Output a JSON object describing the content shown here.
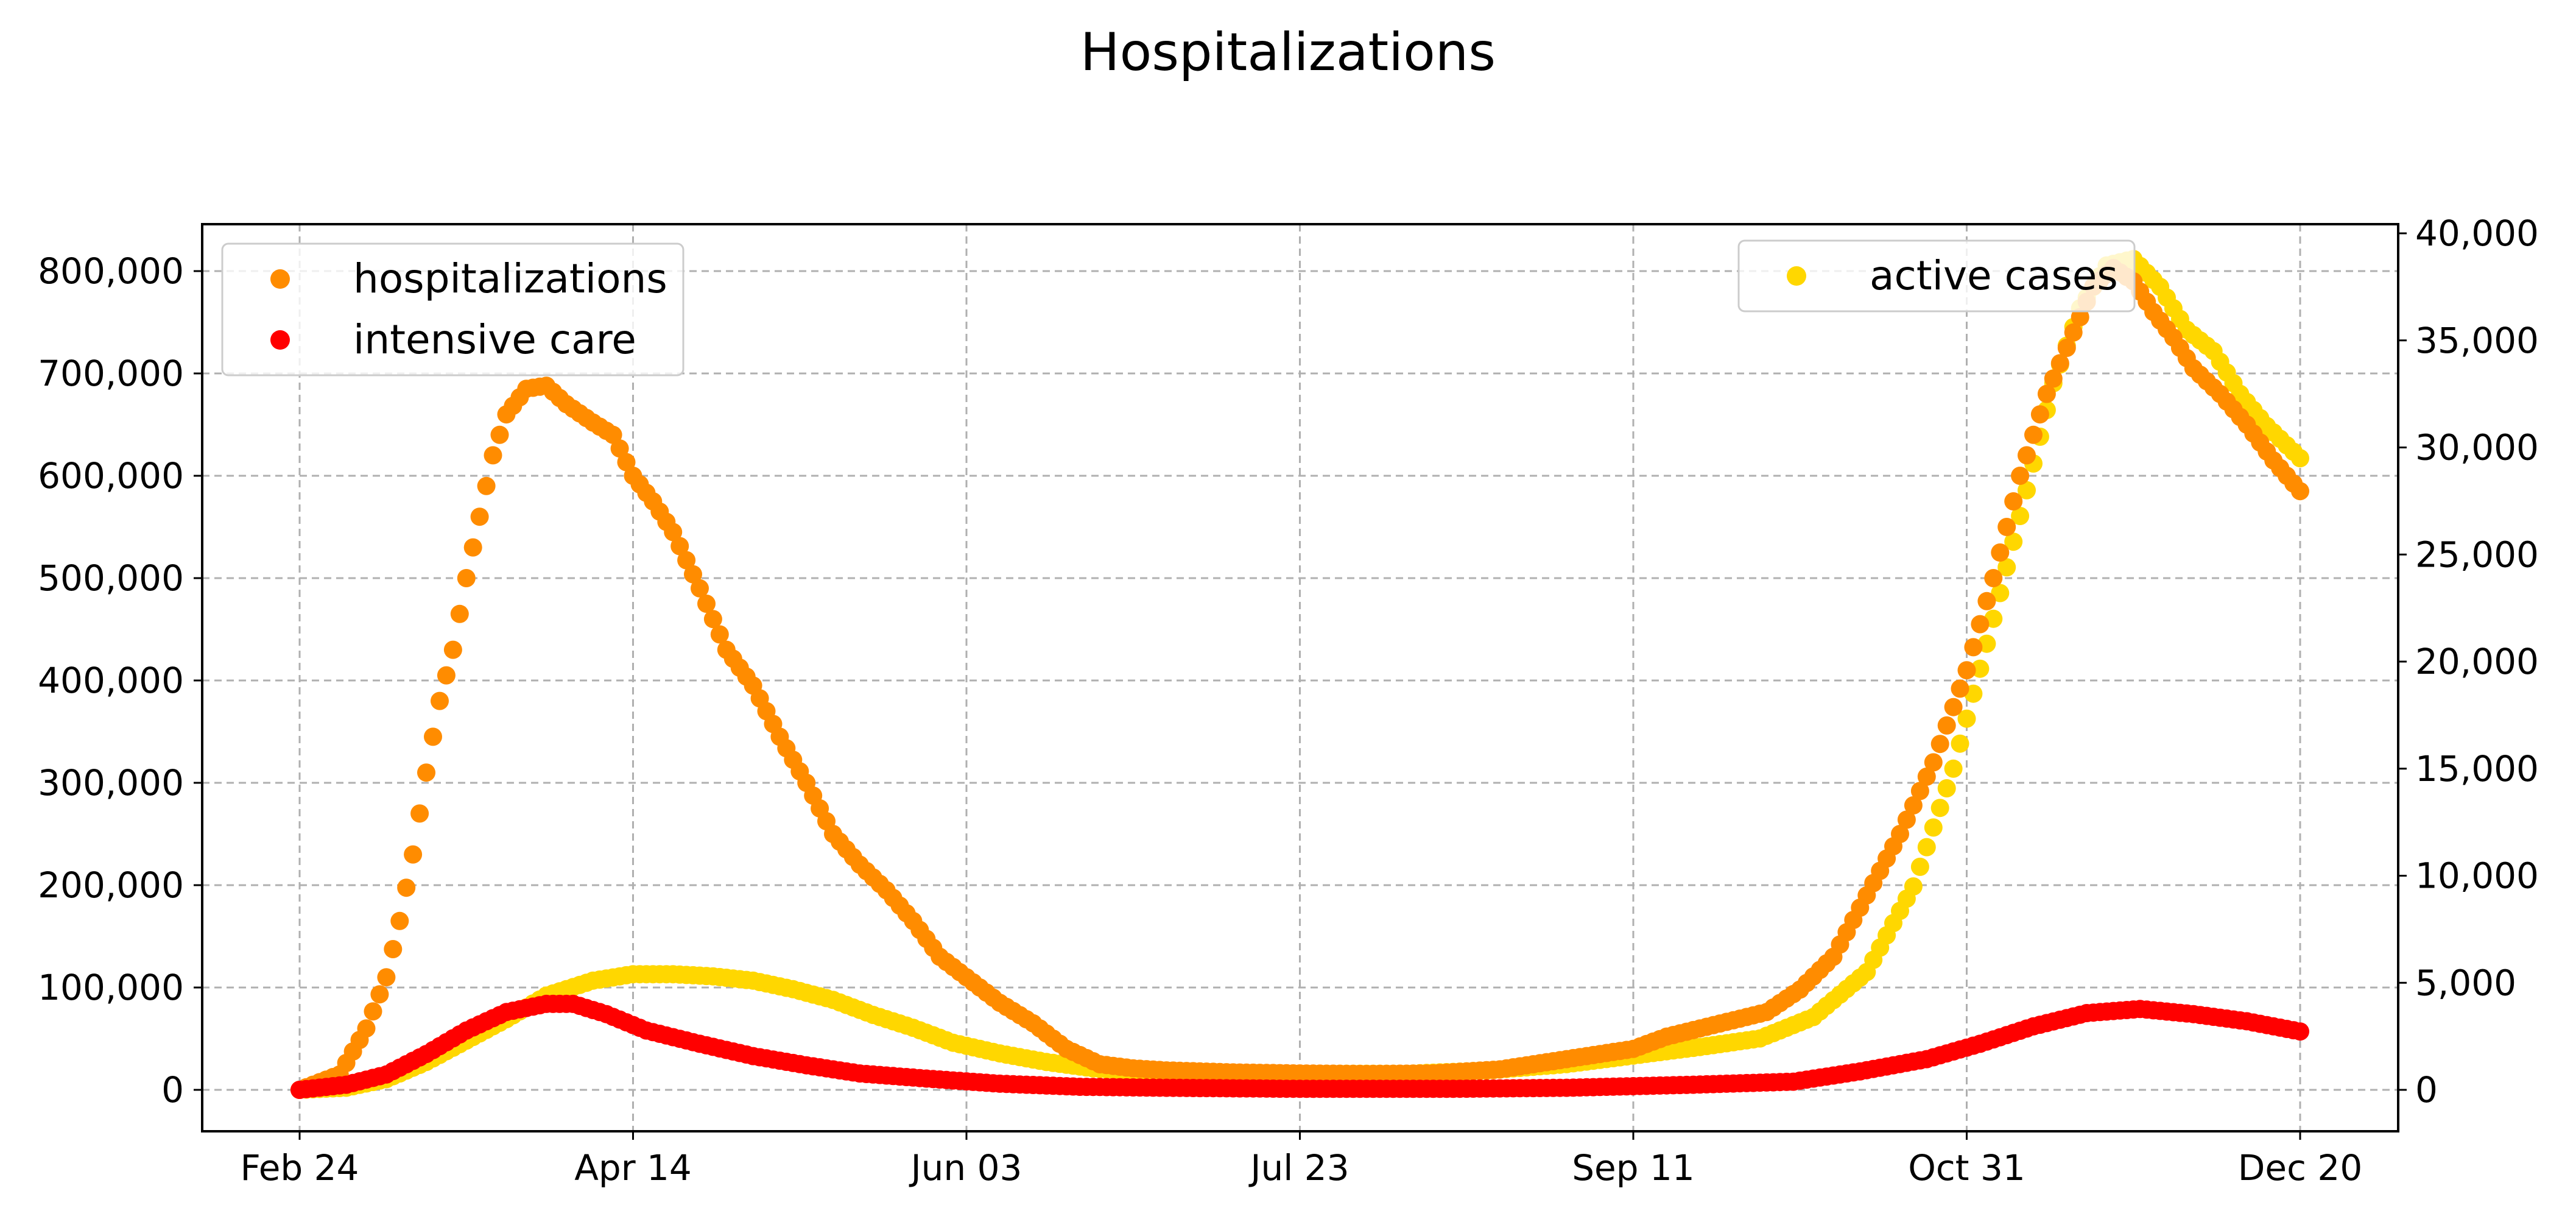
{
  "title": "Hospitalizations",
  "chart_data": {
    "type": "scatter",
    "title": "Hospitalizations",
    "x_type": "date",
    "x_ticks": [
      "Feb 24",
      "Apr 14",
      "Jun 03",
      "Jul 23",
      "Sep 11",
      "Oct 31",
      "Dec 20"
    ],
    "xlim": [
      "2020-02-24",
      "2020-12-20"
    ],
    "y_left": {
      "ylim": [
        0,
        800000
      ],
      "ticks": [
        "0",
        "100,000",
        "200,000",
        "300,000",
        "400,000",
        "500,000",
        "600,000",
        "700,000",
        "800,000"
      ]
    },
    "y_right": {
      "ylim": [
        0,
        40000
      ],
      "ticks": [
        "0",
        "5,000",
        "10,000",
        "15,000",
        "20,000",
        "25,000",
        "30,000",
        "35,000",
        "40,000"
      ]
    },
    "grid": true,
    "legend_left": {
      "placement": "top-left",
      "entries": [
        "hospitalizations",
        "intensive care"
      ]
    },
    "legend_right": {
      "placement": "top-right",
      "entries": [
        "active cases"
      ]
    },
    "series": [
      {
        "name": "hospitalizations",
        "axis": "left",
        "color": "#ff8c00",
        "points": [
          [
            "2020-02-24",
            0
          ],
          [
            "2020-03-01",
            15000
          ],
          [
            "2020-03-05",
            60000
          ],
          [
            "2020-03-08",
            110000
          ],
          [
            "2020-03-10",
            165000
          ],
          [
            "2020-03-12",
            230000
          ],
          [
            "2020-03-14",
            310000
          ],
          [
            "2020-03-16",
            380000
          ],
          [
            "2020-03-18",
            430000
          ],
          [
            "2020-03-20",
            500000
          ],
          [
            "2020-03-22",
            560000
          ],
          [
            "2020-03-24",
            620000
          ],
          [
            "2020-03-26",
            660000
          ],
          [
            "2020-03-29",
            685000
          ],
          [
            "2020-04-01",
            688000
          ],
          [
            "2020-04-04",
            670000
          ],
          [
            "2020-04-08",
            652000
          ],
          [
            "2020-04-11",
            640000
          ],
          [
            "2020-04-14",
            600000
          ],
          [
            "2020-04-17",
            575000
          ],
          [
            "2020-04-20",
            545000
          ],
          [
            "2020-04-24",
            490000
          ],
          [
            "2020-04-28",
            430000
          ],
          [
            "2020-05-02",
            395000
          ],
          [
            "2020-05-06",
            345000
          ],
          [
            "2020-05-10",
            300000
          ],
          [
            "2020-05-14",
            250000
          ],
          [
            "2020-05-18",
            220000
          ],
          [
            "2020-05-22",
            195000
          ],
          [
            "2020-05-26",
            165000
          ],
          [
            "2020-05-30",
            130000
          ],
          [
            "2020-06-03",
            110000
          ],
          [
            "2020-06-08",
            85000
          ],
          [
            "2020-06-13",
            65000
          ],
          [
            "2020-06-18",
            40000
          ],
          [
            "2020-06-23",
            25000
          ],
          [
            "2020-06-28",
            21000
          ],
          [
            "2020-07-03",
            19000
          ],
          [
            "2020-07-13",
            17000
          ],
          [
            "2020-07-23",
            16000
          ],
          [
            "2020-08-02",
            15500
          ],
          [
            "2020-08-12",
            16000
          ],
          [
            "2020-08-22",
            20000
          ],
          [
            "2020-09-01",
            30000
          ],
          [
            "2020-09-11",
            40000
          ],
          [
            "2020-09-16",
            52000
          ],
          [
            "2020-09-21",
            60000
          ],
          [
            "2020-09-26",
            68000
          ],
          [
            "2020-10-01",
            76000
          ],
          [
            "2020-10-06",
            98000
          ],
          [
            "2020-10-11",
            130000
          ],
          [
            "2020-10-16",
            190000
          ],
          [
            "2020-10-21",
            250000
          ],
          [
            "2020-10-26",
            320000
          ],
          [
            "2020-10-31",
            410000
          ],
          [
            "2020-11-04",
            500000
          ],
          [
            "2020-11-08",
            600000
          ],
          [
            "2020-11-12",
            680000
          ],
          [
            "2020-11-16",
            740000
          ],
          [
            "2020-11-19",
            785000
          ],
          [
            "2020-11-22",
            803000
          ],
          [
            "2020-11-25",
            790000
          ],
          [
            "2020-11-28",
            760000
          ],
          [
            "2020-12-01",
            735000
          ],
          [
            "2020-12-04",
            705000
          ],
          [
            "2020-12-08",
            680000
          ],
          [
            "2020-12-12",
            650000
          ],
          [
            "2020-12-16",
            615000
          ],
          [
            "2020-12-20",
            585000
          ]
        ]
      },
      {
        "name": "intensive care",
        "axis": "left",
        "color": "#ff0000",
        "points": [
          [
            "2020-02-24",
            0
          ],
          [
            "2020-03-02",
            5000
          ],
          [
            "2020-03-08",
            15000
          ],
          [
            "2020-03-14",
            35000
          ],
          [
            "2020-03-20",
            58000
          ],
          [
            "2020-03-26",
            76000
          ],
          [
            "2020-04-01",
            84000
          ],
          [
            "2020-04-05",
            84000
          ],
          [
            "2020-04-10",
            74000
          ],
          [
            "2020-04-16",
            58000
          ],
          [
            "2020-04-24",
            45000
          ],
          [
            "2020-05-02",
            33000
          ],
          [
            "2020-05-10",
            24000
          ],
          [
            "2020-05-18",
            16000
          ],
          [
            "2020-05-28",
            11000
          ],
          [
            "2020-06-08",
            6000
          ],
          [
            "2020-06-20",
            3000
          ],
          [
            "2020-07-03",
            2000
          ],
          [
            "2020-07-23",
            1000
          ],
          [
            "2020-08-15",
            1000
          ],
          [
            "2020-09-01",
            2000
          ],
          [
            "2020-09-20",
            5000
          ],
          [
            "2020-10-05",
            8000
          ],
          [
            "2020-10-15",
            18000
          ],
          [
            "2020-10-25",
            30000
          ],
          [
            "2020-11-02",
            45000
          ],
          [
            "2020-11-10",
            62000
          ],
          [
            "2020-11-18",
            75000
          ],
          [
            "2020-11-26",
            79000
          ],
          [
            "2020-12-04",
            74000
          ],
          [
            "2020-12-12",
            67000
          ],
          [
            "2020-12-20",
            57000
          ]
        ]
      },
      {
        "name": "active cases",
        "axis": "right",
        "color": "#ffd700",
        "points": [
          [
            "2020-02-24",
            0
          ],
          [
            "2020-03-02",
            100
          ],
          [
            "2020-03-08",
            500
          ],
          [
            "2020-03-14",
            1300
          ],
          [
            "2020-03-20",
            2300
          ],
          [
            "2020-03-26",
            3300
          ],
          [
            "2020-04-01",
            4400
          ],
          [
            "2020-04-08",
            5100
          ],
          [
            "2020-04-14",
            5400
          ],
          [
            "2020-04-20",
            5400
          ],
          [
            "2020-04-26",
            5300
          ],
          [
            "2020-05-02",
            5100
          ],
          [
            "2020-05-08",
            4700
          ],
          [
            "2020-05-14",
            4200
          ],
          [
            "2020-05-20",
            3500
          ],
          [
            "2020-05-26",
            2900
          ],
          [
            "2020-06-01",
            2200
          ],
          [
            "2020-06-08",
            1700
          ],
          [
            "2020-06-15",
            1300
          ],
          [
            "2020-06-22",
            1000
          ],
          [
            "2020-06-29",
            850
          ],
          [
            "2020-07-07",
            800
          ],
          [
            "2020-07-23",
            750
          ],
          [
            "2020-08-08",
            750
          ],
          [
            "2020-08-20",
            900
          ],
          [
            "2020-09-01",
            1200
          ],
          [
            "2020-09-11",
            1600
          ],
          [
            "2020-09-21",
            2000
          ],
          [
            "2020-09-30",
            2400
          ],
          [
            "2020-10-08",
            3400
          ],
          [
            "2020-10-16",
            5500
          ],
          [
            "2020-10-23",
            9500
          ],
          [
            "2020-10-29",
            15000
          ],
          [
            "2020-11-04",
            22000
          ],
          [
            "2020-11-09",
            28000
          ],
          [
            "2020-11-13",
            33000
          ],
          [
            "2020-11-17",
            36500
          ],
          [
            "2020-11-21",
            38500
          ],
          [
            "2020-11-25",
            38800
          ],
          [
            "2020-11-29",
            37500
          ],
          [
            "2020-12-03",
            35500
          ],
          [
            "2020-12-07",
            34500
          ],
          [
            "2020-12-11",
            32500
          ],
          [
            "2020-12-15",
            31000
          ],
          [
            "2020-12-20",
            29500
          ]
        ]
      }
    ]
  }
}
